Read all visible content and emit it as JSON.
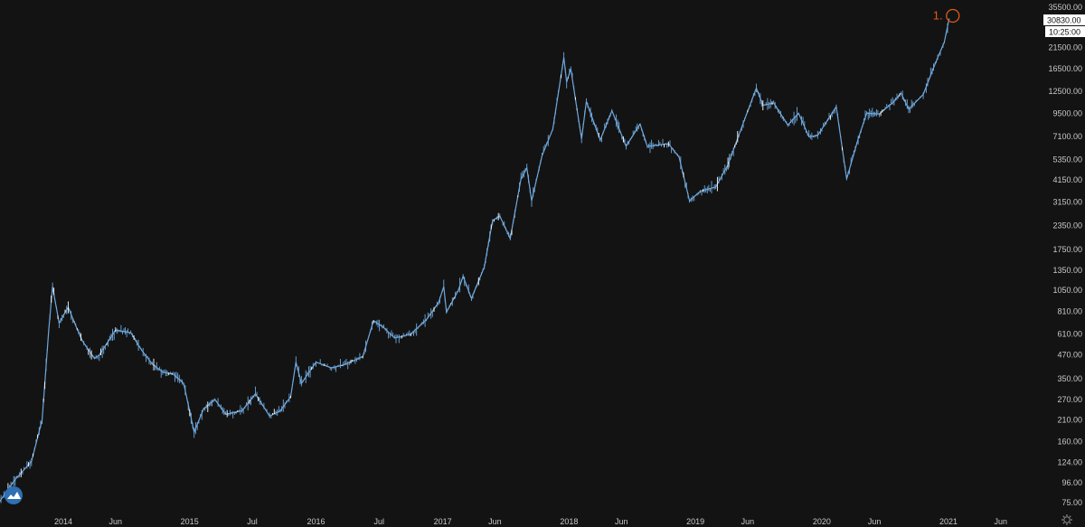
{
  "chart_data": {
    "type": "line",
    "scale": "log",
    "grid": false,
    "legend": "none",
    "y_ticks": [
      "35500.00",
      "30830.00",
      "21500.00",
      "16500.00",
      "12500.00",
      "9500.00",
      "7100.00",
      "5350.00",
      "4150.00",
      "3150.00",
      "2350.00",
      "1750.00",
      "1350.00",
      "1050.00",
      "810.00",
      "610.00",
      "470.00",
      "350.00",
      "270.00",
      "210.00",
      "160.00",
      "124.00",
      "96.00",
      "75.00"
    ],
    "y_tick_values": [
      35500,
      30830,
      21500,
      16500,
      12500,
      9500,
      7100,
      5350,
      4150,
      3150,
      2350,
      1750,
      1350,
      1050,
      810,
      610,
      470,
      350,
      270,
      210,
      160,
      124,
      96,
      75
    ],
    "x_ticks": [
      {
        "label": "2014",
        "date": "2014-01-01"
      },
      {
        "label": "Jun",
        "date": "2014-06-01"
      },
      {
        "label": "2015",
        "date": "2015-01-01"
      },
      {
        "label": "Jul",
        "date": "2015-07-01"
      },
      {
        "label": "2016",
        "date": "2016-01-01"
      },
      {
        "label": "Jul",
        "date": "2016-07-01"
      },
      {
        "label": "2017",
        "date": "2017-01-01"
      },
      {
        "label": "Jun",
        "date": "2017-06-01"
      },
      {
        "label": "2018",
        "date": "2018-01-01"
      },
      {
        "label": "Jun",
        "date": "2018-06-01"
      },
      {
        "label": "2019",
        "date": "2019-01-01"
      },
      {
        "label": "Jun",
        "date": "2019-06-01"
      },
      {
        "label": "2020",
        "date": "2020-01-01"
      },
      {
        "label": "Jun",
        "date": "2020-06-01"
      },
      {
        "label": "2021",
        "date": "2021-01-01"
      },
      {
        "label": "Jun",
        "date": "2021-06-01"
      }
    ],
    "ylim": [
      70,
      38000
    ],
    "series": [
      {
        "color": "#6fa8dc",
        "points": [
          [
            "2013-07-01",
            76
          ],
          [
            "2013-08-15",
            100
          ],
          [
            "2013-10-01",
            125
          ],
          [
            "2013-11-01",
            210
          ],
          [
            "2013-11-20",
            640
          ],
          [
            "2013-12-01",
            1100
          ],
          [
            "2013-12-20",
            700
          ],
          [
            "2014-01-15",
            850
          ],
          [
            "2014-02-10",
            650
          ],
          [
            "2014-02-25",
            560
          ],
          [
            "2014-04-01",
            450
          ],
          [
            "2014-04-15",
            470
          ],
          [
            "2014-06-01",
            640
          ],
          [
            "2014-07-15",
            620
          ],
          [
            "2014-08-15",
            500
          ],
          [
            "2014-09-15",
            420
          ],
          [
            "2014-10-15",
            380
          ],
          [
            "2014-11-15",
            370
          ],
          [
            "2014-12-15",
            330
          ],
          [
            "2015-01-14",
            180
          ],
          [
            "2015-02-10",
            240
          ],
          [
            "2015-03-15",
            270
          ],
          [
            "2015-04-15",
            225
          ],
          [
            "2015-06-01",
            235
          ],
          [
            "2015-07-10",
            290
          ],
          [
            "2015-08-20",
            220
          ],
          [
            "2015-09-20",
            235
          ],
          [
            "2015-10-20",
            280
          ],
          [
            "2015-11-04",
            430
          ],
          [
            "2015-11-20",
            330
          ],
          [
            "2016-01-01",
            430
          ],
          [
            "2016-02-15",
            400
          ],
          [
            "2016-03-20",
            415
          ],
          [
            "2016-05-15",
            460
          ],
          [
            "2016-06-15",
            720
          ],
          [
            "2016-07-15",
            660
          ],
          [
            "2016-08-15",
            580
          ],
          [
            "2016-10-01",
            610
          ],
          [
            "2016-11-15",
            730
          ],
          [
            "2016-12-20",
            900
          ],
          [
            "2017-01-04",
            1100
          ],
          [
            "2017-01-12",
            800
          ],
          [
            "2017-02-15",
            1050
          ],
          [
            "2017-03-01",
            1250
          ],
          [
            "2017-03-25",
            950
          ],
          [
            "2017-05-01",
            1400
          ],
          [
            "2017-05-25",
            2500
          ],
          [
            "2017-06-15",
            2650
          ],
          [
            "2017-07-15",
            2000
          ],
          [
            "2017-08-15",
            4200
          ],
          [
            "2017-09-01",
            4800
          ],
          [
            "2017-09-15",
            3200
          ],
          [
            "2017-10-15",
            5600
          ],
          [
            "2017-11-15",
            7800
          ],
          [
            "2017-12-17",
            19000
          ],
          [
            "2017-12-25",
            14000
          ],
          [
            "2018-01-06",
            16500
          ],
          [
            "2018-02-06",
            6900
          ],
          [
            "2018-02-20",
            11000
          ],
          [
            "2018-04-01",
            6800
          ],
          [
            "2018-05-05",
            9800
          ],
          [
            "2018-06-15",
            6300
          ],
          [
            "2018-07-25",
            8300
          ],
          [
            "2018-08-15",
            6300
          ],
          [
            "2018-10-15",
            6500
          ],
          [
            "2018-11-15",
            5500
          ],
          [
            "2018-12-15",
            3200
          ],
          [
            "2019-01-15",
            3600
          ],
          [
            "2019-03-01",
            3800
          ],
          [
            "2019-04-05",
            5000
          ],
          [
            "2019-05-15",
            8000
          ],
          [
            "2019-06-26",
            13000
          ],
          [
            "2019-07-15",
            10500
          ],
          [
            "2019-08-15",
            10800
          ],
          [
            "2019-09-25",
            8200
          ],
          [
            "2019-10-26",
            9500
          ],
          [
            "2019-11-25",
            7100
          ],
          [
            "2019-12-20",
            7200
          ],
          [
            "2020-02-12",
            10300
          ],
          [
            "2020-03-13",
            4200
          ],
          [
            "2020-04-15",
            6900
          ],
          [
            "2020-05-10",
            9500
          ],
          [
            "2020-06-15",
            9400
          ],
          [
            "2020-07-28",
            11000
          ],
          [
            "2020-08-17",
            12200
          ],
          [
            "2020-09-08",
            10000
          ],
          [
            "2020-10-20",
            12000
          ],
          [
            "2020-11-15",
            16000
          ],
          [
            "2020-12-01",
            19000
          ],
          [
            "2020-12-20",
            23000
          ],
          [
            "2021-01-03",
            30830
          ]
        ]
      }
    ]
  },
  "price_label": "30830.00",
  "time_label": "10:25:00",
  "annotation_label": "1.",
  "colors": {
    "background": "#131313",
    "line": "#6fa8dc",
    "accent": "#e05a1c",
    "axis_text": "#c8c8c8"
  },
  "icons": {
    "logo": "cloud-logo-icon",
    "settings": "gear-icon"
  }
}
